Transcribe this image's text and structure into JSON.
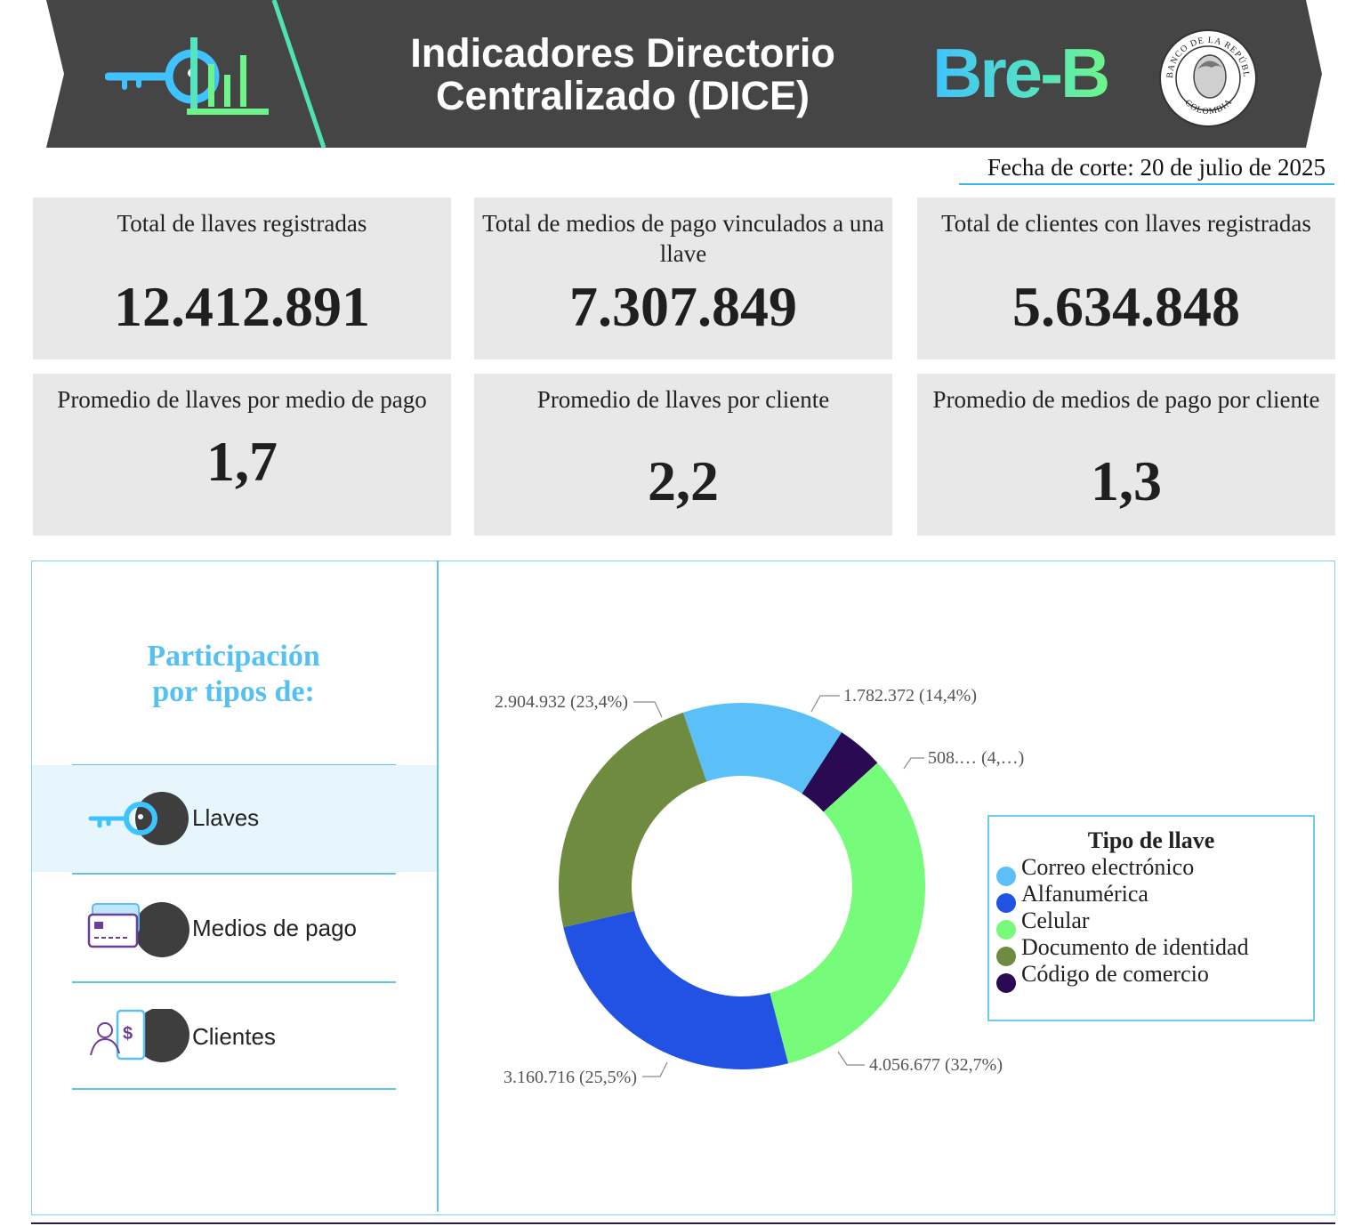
{
  "header": {
    "title_line1": "Indicadores Directorio",
    "title_line2": "Centralizado (DICE)",
    "brand": "Bre-B",
    "seal_text_top": "BANCO DE LA REPÚBLICA",
    "seal_text_bottom": "COLOMBIA"
  },
  "date": "Fecha de corte: 20 de julio de 2025",
  "kpis": [
    {
      "label": "Total de llaves registradas",
      "value": "12.412.891"
    },
    {
      "label": "Total de medios de pago vinculados a una llave",
      "value": "7.307.849"
    },
    {
      "label": "Total de clientes con llaves registradas",
      "value": "5.634.848"
    },
    {
      "label": "Promedio de llaves por medio de pago",
      "value": "1,7"
    },
    {
      "label": "Promedio de llaves por cliente",
      "value": "2,2"
    },
    {
      "label": "Promedio de medios de pago por cliente",
      "value": "1,3"
    }
  ],
  "participation": {
    "title_line1": "Participación",
    "title_line2": "por tipos de:",
    "items": [
      {
        "label": "Llaves",
        "icon": "key-icon",
        "active": true
      },
      {
        "label": "Medios de pago",
        "icon": "card-icon",
        "active": false
      },
      {
        "label": "Clientes",
        "icon": "client-phone-icon",
        "active": false
      }
    ]
  },
  "colors": {
    "accent": "#55c0f2",
    "banner": "#454545",
    "card_bg": "#e8e8e8"
  },
  "chart_data": {
    "type": "pie",
    "donut": true,
    "legend_title": "Tipo de llave",
    "legend_position": "right",
    "slices": [
      {
        "name": "Correo electrónico",
        "value": 1782372,
        "label": "1.782.372 (14,4%)",
        "color": "#5bbff8"
      },
      {
        "name": "Código de comercio",
        "value": 508000,
        "label": "508.… (4,…)",
        "color": "#2a0a52"
      },
      {
        "name": "Celular",
        "value": 4056677,
        "label": "4.056.677 (32,7%)",
        "color": "#76fc7a"
      },
      {
        "name": "Alfanumérica",
        "value": 3160716,
        "label": "3.160.716 (25,5%)",
        "color": "#2152e3"
      },
      {
        "name": "Documento de identidad",
        "value": 2904932,
        "label": "2.904.932 (23,4%)",
        "color": "#6e8b40"
      }
    ],
    "legend": [
      {
        "name": "Correo electrónico",
        "color": "#5bbff8"
      },
      {
        "name": "Alfanumérica",
        "color": "#2152e3"
      },
      {
        "name": "Celular",
        "color": "#76fc7a"
      },
      {
        "name": "Documento de identidad",
        "color": "#6e8b40"
      },
      {
        "name": "Código de comercio",
        "color": "#2a0a52"
      }
    ]
  }
}
